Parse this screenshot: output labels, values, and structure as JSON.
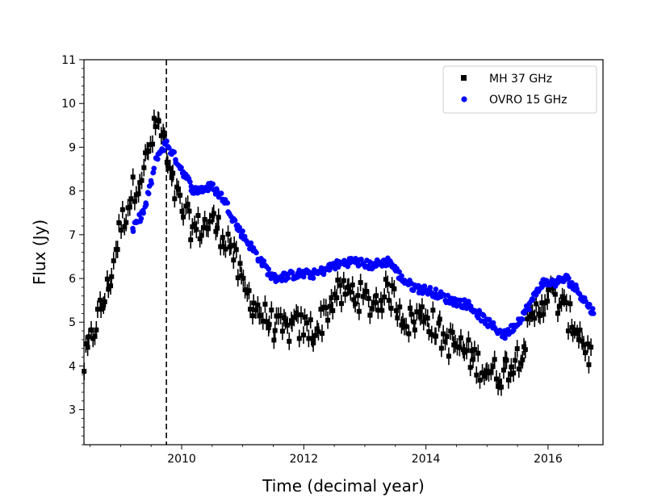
{
  "chart_data": {
    "type": "scatter",
    "title": "",
    "xlabel": "Time (decimal year)",
    "ylabel": "Flux (Jy)",
    "xlim": [
      2008.4,
      2016.9
    ],
    "ylim": [
      2.2,
      11.0
    ],
    "xticks": [
      2010,
      2012,
      2014,
      2016
    ],
    "yticks": [
      3,
      4,
      5,
      6,
      7,
      8,
      9,
      10,
      11
    ],
    "x_minor_step": 0.5,
    "y_minor_step": 0.2,
    "grid": false,
    "legend_position": "upper right",
    "vline": {
      "x": 2009.75,
      "style": "dashed",
      "color": "#000000"
    },
    "series": [
      {
        "name": "MH 37 GHz",
        "marker": "square",
        "color": "#000000",
        "error_bar": 0.2,
        "anchors_x": [
          2008.4,
          2008.6,
          2008.8,
          2009.0,
          2009.2,
          2009.4,
          2009.6,
          2009.7,
          2009.8,
          2010.0,
          2010.2,
          2010.5,
          2010.8,
          2011.0,
          2011.3,
          2011.6,
          2011.9,
          2012.2,
          2012.5,
          2012.8,
          2013.1,
          2013.4,
          2013.7,
          2014.0,
          2014.3,
          2014.6,
          2014.9,
          2015.2,
          2015.5,
          2015.8,
          2016.0,
          2016.2,
          2016.5,
          2016.7
        ],
        "anchors_y": [
          4.0,
          5.0,
          5.8,
          7.2,
          8.0,
          8.6,
          9.6,
          9.2,
          8.3,
          7.6,
          7.1,
          7.3,
          6.8,
          5.8,
          5.2,
          4.8,
          4.9,
          4.8,
          5.6,
          5.7,
          5.4,
          5.7,
          5.0,
          5.2,
          4.6,
          4.4,
          4.0,
          3.8,
          4.2,
          5.2,
          5.7,
          5.4,
          4.8,
          4.2
        ],
        "noise": 0.35,
        "n_points": 290
      },
      {
        "name": "OVRO 15 GHz",
        "marker": "circle",
        "color": "#0000ff",
        "error_bar": 0.06,
        "anchors_x": [
          2009.2,
          2009.4,
          2009.6,
          2009.75,
          2010.0,
          2010.2,
          2010.5,
          2010.7,
          2010.9,
          2011.2,
          2011.5,
          2011.9,
          2012.2,
          2012.5,
          2012.8,
          2013.1,
          2013.4,
          2013.6,
          2013.8,
          2014.1,
          2014.4,
          2014.7,
          2015.0,
          2015.3,
          2015.5,
          2015.7,
          2015.9,
          2016.1,
          2016.3,
          2016.5,
          2016.75
        ],
        "anchors_y": [
          7.1,
          7.6,
          8.8,
          9.1,
          8.5,
          8.0,
          8.1,
          7.8,
          7.2,
          6.6,
          6.0,
          6.1,
          6.1,
          6.3,
          6.4,
          6.3,
          6.4,
          6.0,
          5.8,
          5.7,
          5.5,
          5.4,
          5.0,
          4.7,
          5.0,
          5.4,
          5.9,
          5.9,
          6.0,
          5.7,
          5.2
        ],
        "noise": 0.1,
        "n_points": 470
      }
    ]
  }
}
